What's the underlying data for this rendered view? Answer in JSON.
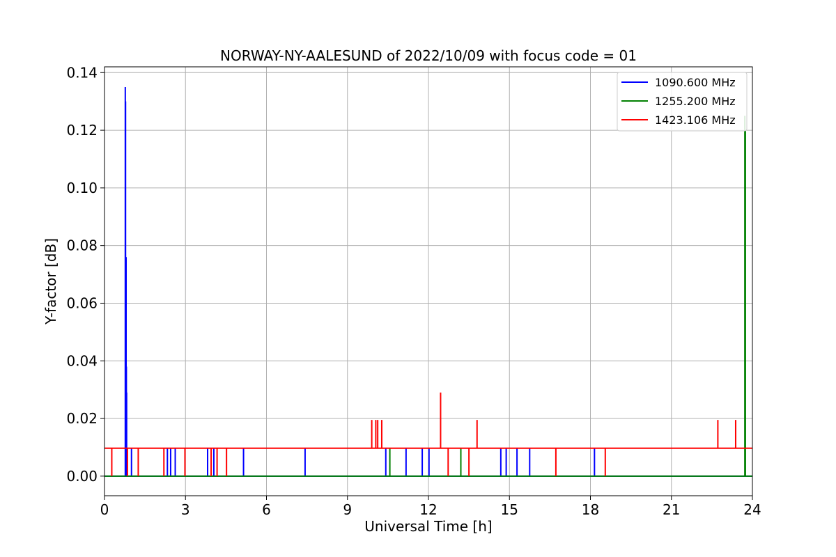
{
  "chart_data": {
    "type": "line",
    "title": "NORWAY-NY-AALESUND of 2022/10/09 with focus code = 01",
    "xlabel": "Universal Time [h]",
    "ylabel": "Y-factor [dB]",
    "xlim": [
      0,
      24
    ],
    "ylim": [
      -0.0068,
      0.142
    ],
    "xticks": [
      0,
      3,
      6,
      9,
      12,
      15,
      18,
      21,
      24
    ],
    "xtick_labels": [
      "0",
      "3",
      "6",
      "9",
      "12",
      "15",
      "18",
      "21",
      "24"
    ],
    "yticks": [
      0.0,
      0.02,
      0.04,
      0.06,
      0.08,
      0.1,
      0.12,
      0.14
    ],
    "ytick_labels": [
      "0.00",
      "0.02",
      "0.04",
      "0.06",
      "0.08",
      "0.10",
      "0.12",
      "0.14"
    ],
    "grid": true,
    "legend_position": "top-right",
    "series": [
      {
        "name": "1090.600 MHz",
        "color": "#0000ff",
        "baseline": 0.0,
        "spikes": [
          [
            0.77,
            0.135
          ],
          [
            0.78,
            0.13
          ],
          [
            0.8,
            0.076
          ],
          [
            0.81,
            0.038
          ],
          [
            0.82,
            0.029
          ],
          [
            1.0,
            0.0097
          ],
          [
            2.33,
            0.0097
          ],
          [
            2.45,
            0.0097
          ],
          [
            2.62,
            0.0097
          ],
          [
            3.82,
            0.0097
          ],
          [
            4.05,
            0.0097
          ],
          [
            5.15,
            0.0097
          ],
          [
            7.43,
            0.0097
          ],
          [
            10.42,
            0.0097
          ],
          [
            11.17,
            0.0097
          ],
          [
            11.77,
            0.0097
          ],
          [
            12.02,
            0.0097
          ],
          [
            14.68,
            0.0097
          ],
          [
            14.88,
            0.0097
          ],
          [
            15.28,
            0.0097
          ],
          [
            15.75,
            0.0097
          ],
          [
            18.15,
            0.0097
          ]
        ]
      },
      {
        "name": "1255.200 MHz",
        "color": "#008000",
        "baseline": 0.0,
        "spikes": [
          [
            10.57,
            0.0097
          ],
          [
            13.2,
            0.0097
          ],
          [
            23.72,
            0.125
          ],
          [
            23.74,
            0.12
          ]
        ]
      },
      {
        "name": "1423.106 MHz",
        "color": "#ff0000",
        "baseline": 0.0097,
        "spikes": [
          [
            0.27,
            0.0
          ],
          [
            0.85,
            0.0
          ],
          [
            1.25,
            0.0
          ],
          [
            2.2,
            0.0
          ],
          [
            2.98,
            0.0
          ],
          [
            3.95,
            0.0
          ],
          [
            4.17,
            0.0
          ],
          [
            4.52,
            0.0
          ],
          [
            9.9,
            0.0195
          ],
          [
            10.05,
            0.0195
          ],
          [
            10.12,
            0.0195
          ],
          [
            10.27,
            0.0195
          ],
          [
            12.45,
            0.029
          ],
          [
            12.73,
            0.0
          ],
          [
            13.5,
            0.0
          ],
          [
            13.8,
            0.0195
          ],
          [
            16.72,
            0.0
          ],
          [
            18.55,
            0.0
          ],
          [
            22.72,
            0.0195
          ],
          [
            23.38,
            0.0195
          ]
        ]
      }
    ]
  }
}
